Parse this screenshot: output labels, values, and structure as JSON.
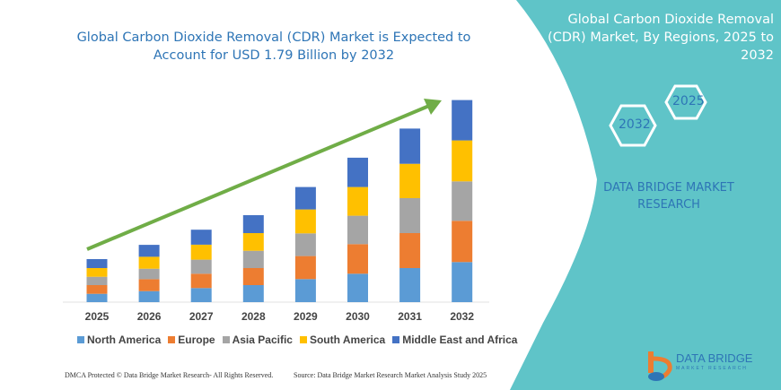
{
  "title": "Global Carbon Dioxide Removal (CDR) Market is Expected to Account for USD 1.79 Billion by 2032",
  "side_panel": {
    "title": "Global Carbon Dioxide Removal (CDR) Market, By Regions, 2025 to 2032",
    "hex_start": "2025",
    "hex_end": "2032",
    "brand": "DATA BRIDGE MARKET RESEARCH",
    "color": "#5fc4c8"
  },
  "footer": {
    "copyright": "DMCA Protected © Data Bridge Market Research- All Rights Reserved.",
    "source": "Source: Data Bridge Market Research Market Analysis Study 2025",
    "logo_text": "DATA BRIDGE",
    "logo_sub": "MARKET RESEARCH"
  },
  "chart_data": {
    "type": "bar",
    "stacked": true,
    "categories": [
      "2025",
      "2026",
      "2027",
      "2028",
      "2029",
      "2030",
      "2031",
      "2032"
    ],
    "series": [
      {
        "name": "North America",
        "color": "#5b9bd5",
        "values": [
          9.3,
          12.3,
          15.7,
          19,
          25.7,
          31.7,
          38,
          44.7
        ]
      },
      {
        "name": "Europe",
        "color": "#ed7d31",
        "values": [
          9.7,
          13.3,
          16,
          19,
          25.7,
          33,
          39,
          46
        ]
      },
      {
        "name": "Asia Pacific",
        "color": "#a5a5a5",
        "values": [
          9.3,
          11.7,
          15.7,
          19.3,
          25.3,
          31.7,
          39,
          44
        ]
      },
      {
        "name": "South America",
        "color": "#ffc000",
        "values": [
          9.7,
          13.3,
          16.7,
          19.7,
          26.7,
          32,
          38.3,
          45.7
        ]
      },
      {
        "name": "Middle East and Africa",
        "color": "#4472c4",
        "values": [
          10,
          13.3,
          16.7,
          20,
          25,
          32.7,
          39.3,
          45
        ]
      }
    ],
    "trend_arrow_color": "#70ad47",
    "legend": "bottom",
    "grid": false,
    "y_axis_shown": false
  }
}
